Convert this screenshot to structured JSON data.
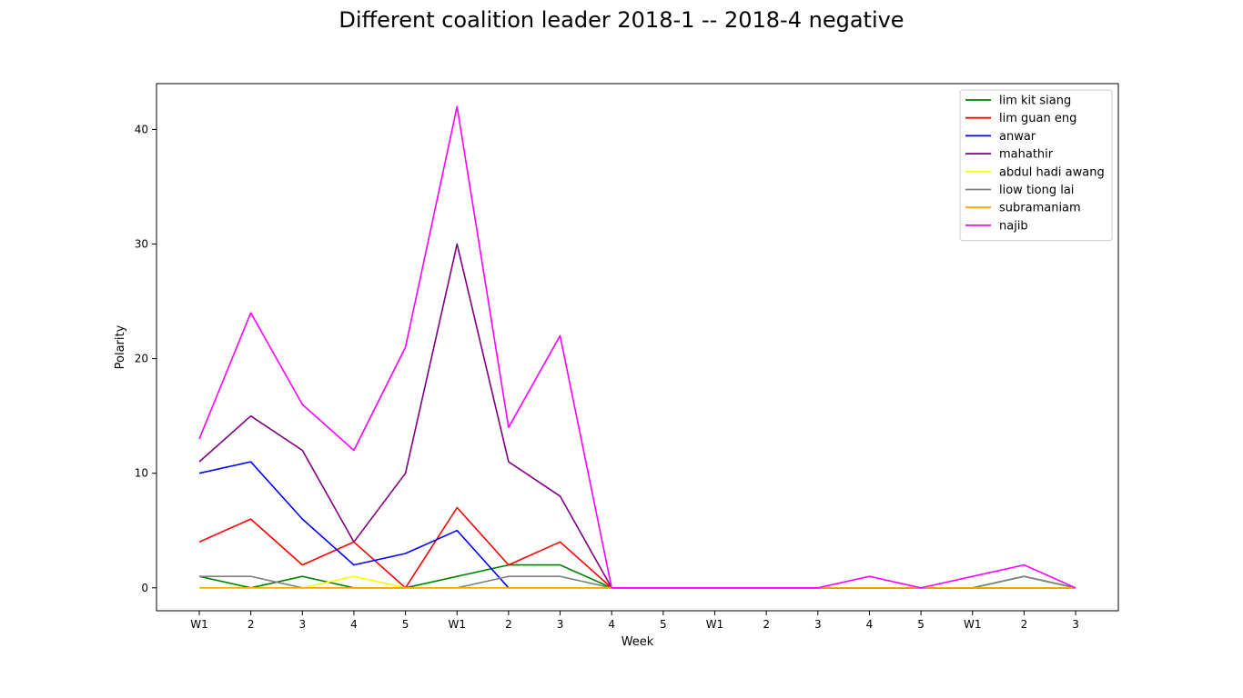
{
  "chart_data": {
    "type": "line",
    "title": "Different coalition leader 2018-1 -- 2018-4 negative",
    "xlabel": "Week",
    "ylabel": "Polarity",
    "categories": [
      "W1",
      "2",
      "3",
      "4",
      "5",
      "W1",
      "2",
      "3",
      "4",
      "5",
      "W1",
      "2",
      "3",
      "4",
      "5",
      "W1",
      "2",
      "3"
    ],
    "ylim": [
      -2,
      44
    ],
    "yticks": [
      0,
      10,
      20,
      30,
      40
    ],
    "grid": false,
    "legend_position": "top-right",
    "series": [
      {
        "name": "lim kit siang",
        "color": "#008000",
        "values": [
          1,
          0,
          1,
          0,
          0,
          1,
          2,
          2,
          0,
          0,
          0,
          0,
          0,
          0,
          0,
          0,
          1,
          0
        ]
      },
      {
        "name": "lim guan eng",
        "color": "#ff0000",
        "values": [
          4,
          6,
          2,
          4,
          0,
          7,
          2,
          4,
          0,
          0,
          0,
          0,
          0,
          0,
          0,
          0,
          0,
          0
        ]
      },
      {
        "name": "anwar",
        "color": "#0000ff",
        "values": [
          10,
          11,
          6,
          2,
          3,
          5,
          0,
          0,
          0,
          0,
          0,
          0,
          0,
          0,
          0,
          0,
          0,
          0
        ]
      },
      {
        "name": "mahathir",
        "color": "#800080",
        "values": [
          11,
          15,
          12,
          4,
          10,
          30,
          11,
          8,
          0,
          0,
          0,
          0,
          0,
          0,
          0,
          0,
          0,
          0
        ]
      },
      {
        "name": "abdul hadi awang",
        "color": "#ffff00",
        "values": [
          0,
          0,
          0,
          1,
          0,
          0,
          0,
          0,
          0,
          0,
          0,
          0,
          0,
          0,
          0,
          0,
          0,
          0
        ]
      },
      {
        "name": "liow tiong lai",
        "color": "#808080",
        "values": [
          1,
          1,
          0,
          0,
          0,
          0,
          1,
          1,
          0,
          0,
          0,
          0,
          0,
          0,
          0,
          0,
          1,
          0
        ]
      },
      {
        "name": "subramaniam",
        "color": "#ffa500",
        "values": [
          0,
          0,
          0,
          0,
          0,
          0,
          0,
          0,
          0,
          0,
          0,
          0,
          0,
          0,
          0,
          0,
          0,
          0
        ]
      },
      {
        "name": "najib",
        "color": "#ff00ff",
        "values": [
          13,
          24,
          16,
          12,
          21,
          42,
          14,
          22,
          0,
          0,
          0,
          0,
          0,
          1,
          0,
          1,
          2,
          0
        ]
      }
    ]
  }
}
